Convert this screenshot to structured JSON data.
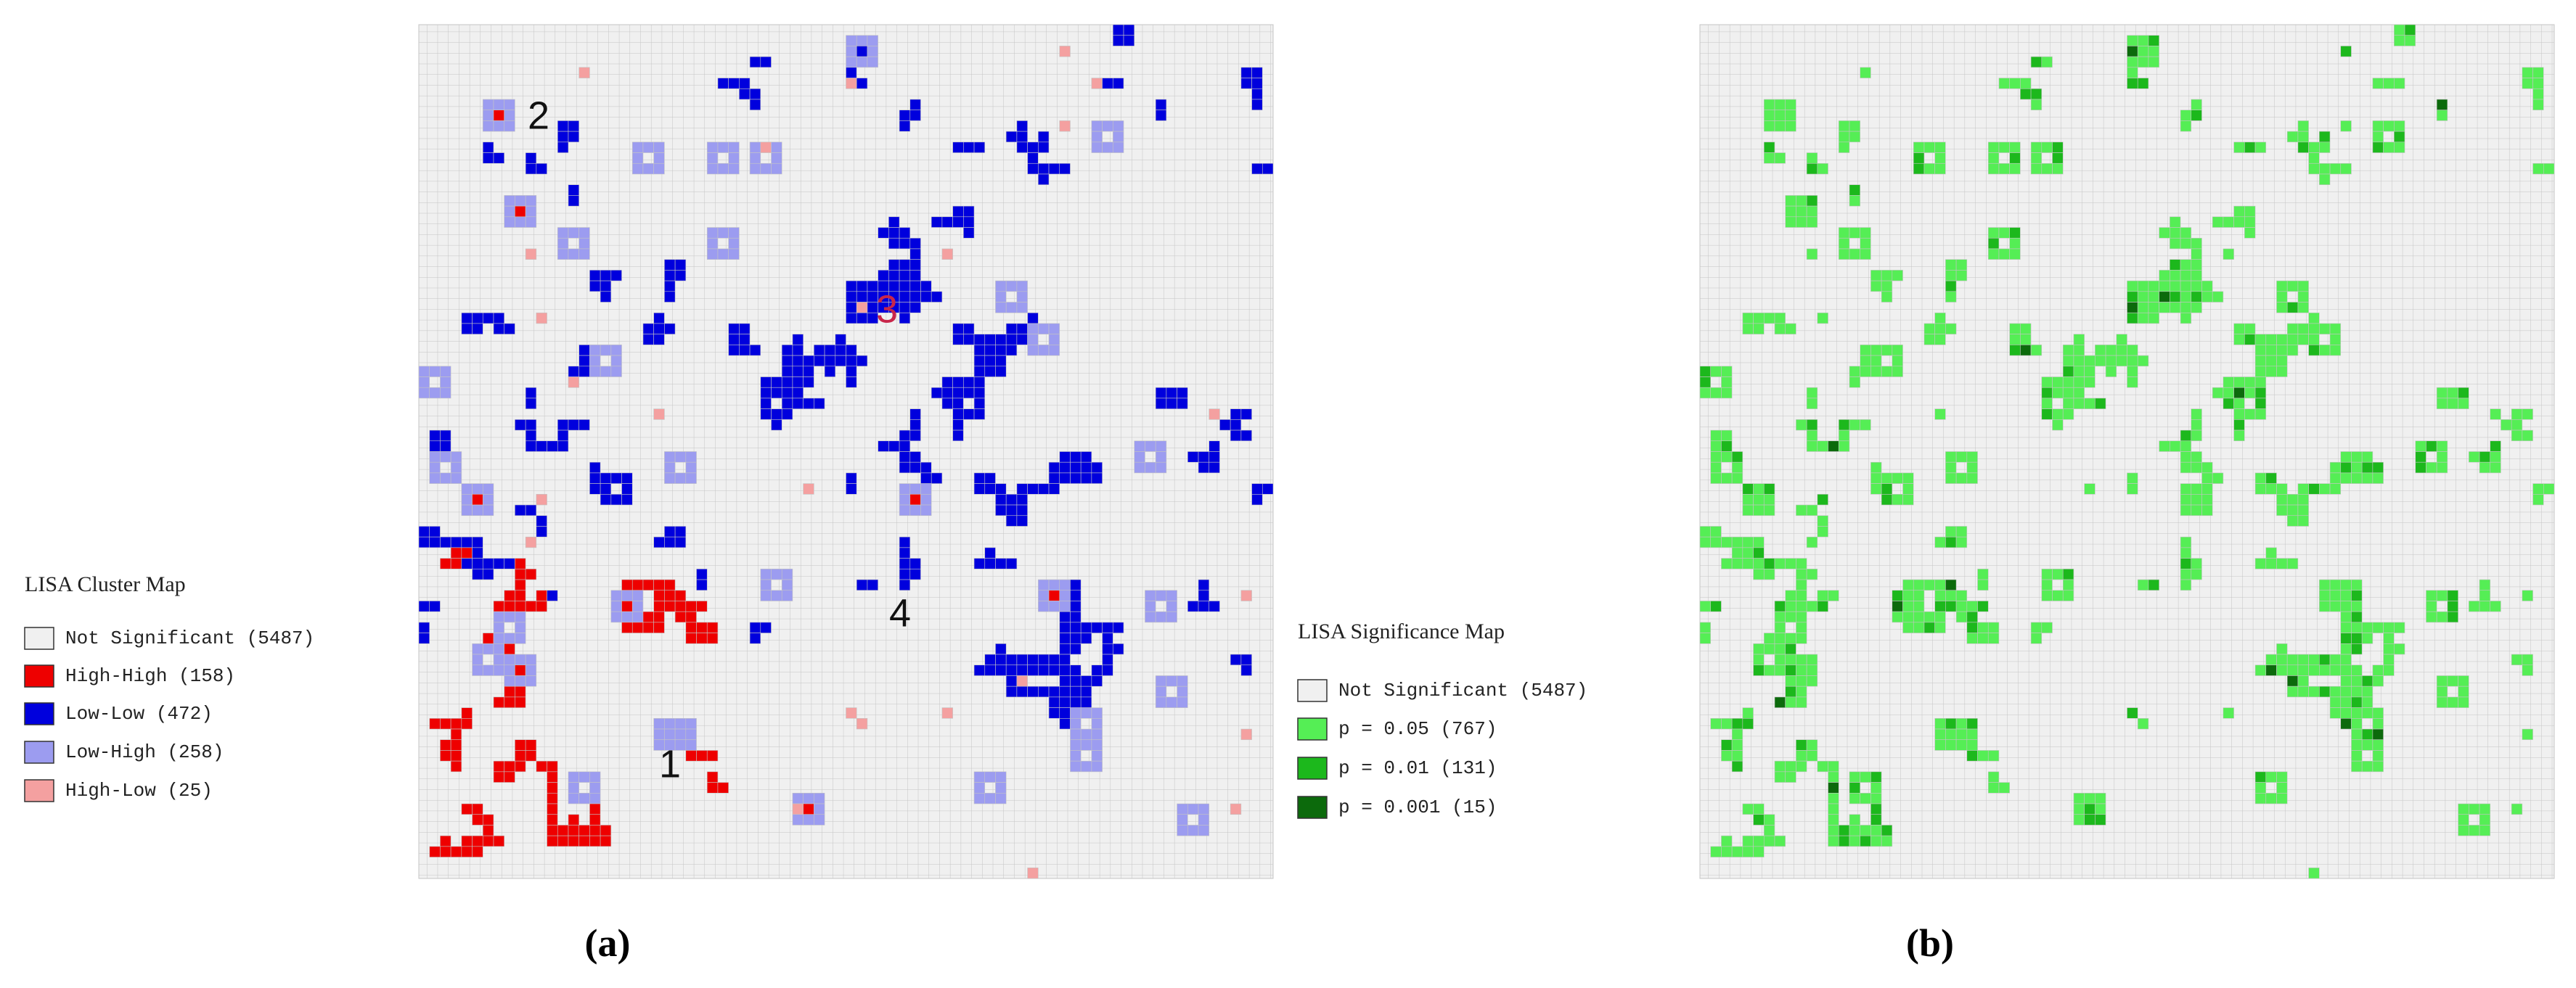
{
  "panel_a": {
    "caption": "(a)",
    "legend": {
      "title": "LISA Cluster Map",
      "items": [
        {
          "label": "Not Significant (5487)",
          "color": "#f0f0f0"
        },
        {
          "label": "High-High (158)",
          "color": "#ee0000"
        },
        {
          "label": "Low-Low (472)",
          "color": "#0000dd"
        },
        {
          "label": "Low-High (258)",
          "color": "#9c9cf0"
        },
        {
          "label": "High-Low (25)",
          "color": "#f4a0a0"
        }
      ]
    },
    "markers": [
      "1",
      "2",
      "3",
      "4"
    ]
  },
  "panel_b": {
    "caption": "(b)",
    "legend": {
      "title": "LISA Significance Map",
      "items": [
        {
          "label": "Not Significant (5487)",
          "color": "#f0f0f0"
        },
        {
          "label": "p = 0.05 (767)",
          "color": "#55ee55"
        },
        {
          "label": "p = 0.01 (131)",
          "color": "#1cb81c"
        },
        {
          "label": "p = 0.001 (15)",
          "color": "#0c6a0c"
        }
      ]
    }
  }
}
